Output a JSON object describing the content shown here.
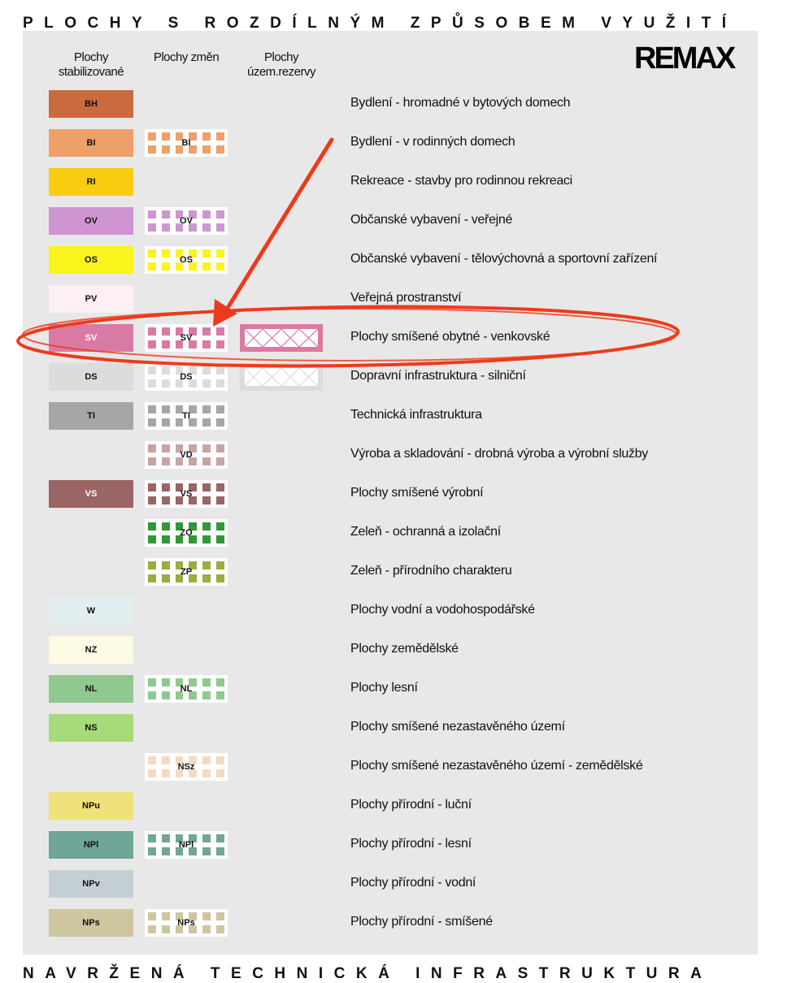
{
  "title": "PLOCHY S ROZDÍLNÝM ZPŮSOBEM VYUŽITÍ",
  "bottom_title": "NAVRŽENÁ TECHNICKÁ INFRASTRUKTURA",
  "logo": "REMAX",
  "columns": [
    "Plochy stabilizované",
    "Plochy změn",
    "Plochy územ.rezervy"
  ],
  "highlight": {
    "row_code": "SV",
    "color": "#ee3a1c"
  },
  "rows": [
    {
      "code": "BH",
      "label": "Bydlení - hromadné v bytových domech",
      "color": "#cc6a3f",
      "stable": true,
      "change": false,
      "reserve": false
    },
    {
      "code": "BI",
      "label": "Bydlení - v rodinných domech",
      "color": "#eea068",
      "stable": true,
      "change": true,
      "reserve": false
    },
    {
      "code": "RI",
      "label": "Rekreace - stavby pro rodinnou rekreaci",
      "color": "#f9cc12",
      "stable": true,
      "change": false,
      "reserve": false
    },
    {
      "code": "OV",
      "label": "Občanské vybavení - veřejné",
      "color": "#cf95d2",
      "stable": true,
      "change": true,
      "reserve": false
    },
    {
      "code": "OS",
      "label": "Občanské vybavení - tělovýchovná a sportovní zařízení",
      "color": "#fbf31c",
      "stable": true,
      "change": true,
      "reserve": false
    },
    {
      "code": "PV",
      "label": "Veřejná prostranství",
      "color": "#fcf0f4",
      "stable": true,
      "change": false,
      "reserve": false
    },
    {
      "code": "SV",
      "label": "Plochy smíšené obytné - venkovské",
      "color": "#d97aa4",
      "stable": true,
      "change": true,
      "reserve": true
    },
    {
      "code": "DS",
      "label": "Dopravní infrastruktura - silniční",
      "color": "#dcdcdc",
      "stable": true,
      "change": true,
      "reserve": true
    },
    {
      "code": "TI",
      "label": "Technická infrastruktura",
      "color": "#a6a6a6",
      "stable": true,
      "change": true,
      "reserve": false
    },
    {
      "code": "VD",
      "label": "Výroba a skladování - drobná výroba a výrobní služby",
      "color": "#c9a3a3",
      "stable": false,
      "change": true,
      "reserve": false
    },
    {
      "code": "VS",
      "label": "Plochy smíšené výrobní",
      "color": "#996565",
      "stable": true,
      "change": true,
      "reserve": false
    },
    {
      "code": "ZO",
      "label": "Zeleň - ochranná a izolační",
      "color": "#2f9a35",
      "stable": false,
      "change": true,
      "reserve": false
    },
    {
      "code": "ZP",
      "label": "Zeleň - přírodního charakteru",
      "color": "#9aad3e",
      "stable": false,
      "change": true,
      "reserve": false
    },
    {
      "code": "W",
      "label": "Plochy vodní a vodohospodářské",
      "color": "#e3eef0",
      "stable": true,
      "change": false,
      "reserve": false
    },
    {
      "code": "NZ",
      "label": "Plochy zemědělské",
      "color": "#fefbe4",
      "stable": true,
      "change": false,
      "reserve": false
    },
    {
      "code": "NL",
      "label": "Plochy lesní",
      "color": "#8fc98f",
      "stable": true,
      "change": true,
      "reserve": false
    },
    {
      "code": "NS",
      "label": "Plochy smíšené nezastavěného území",
      "color": "#a7db79",
      "stable": true,
      "change": false,
      "reserve": false
    },
    {
      "code": "NSz",
      "label": "Plochy smíšené nezastavěného území - zemědělské",
      "color": "#f7d9c0",
      "stable": false,
      "change": true,
      "reserve": false
    },
    {
      "code": "NPu",
      "label": "Plochy přírodní - luční",
      "color": "#f0e27a",
      "stable": true,
      "change": false,
      "reserve": false
    },
    {
      "code": "NPl",
      "label": "Plochy přírodní - lesní",
      "color": "#6fa698",
      "stable": true,
      "change": true,
      "reserve": false
    },
    {
      "code": "NPv",
      "label": "Plochy přírodní - vodní",
      "color": "#c4cfd4",
      "stable": true,
      "change": false,
      "reserve": false
    },
    {
      "code": "NPs",
      "label": "Plochy přírodní - smíšené",
      "color": "#cec69f",
      "stable": true,
      "change": true,
      "reserve": false
    }
  ]
}
